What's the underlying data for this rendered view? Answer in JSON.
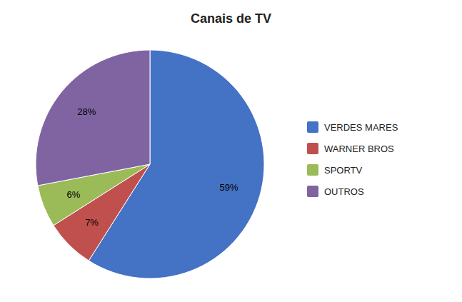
{
  "chart_data": {
    "type": "pie",
    "title": "Canais de TV",
    "categories": [
      "VERDES MARES",
      "WARNER BROS",
      "SPORTV",
      "OUTROS"
    ],
    "values": [
      59,
      7,
      6,
      28
    ],
    "value_labels": [
      "59%",
      "7%",
      "6%",
      "28%"
    ],
    "colors": [
      "#4472C4",
      "#C0504D",
      "#9BBB59",
      "#8064A2"
    ],
    "data_labels": true,
    "legend": "right"
  }
}
